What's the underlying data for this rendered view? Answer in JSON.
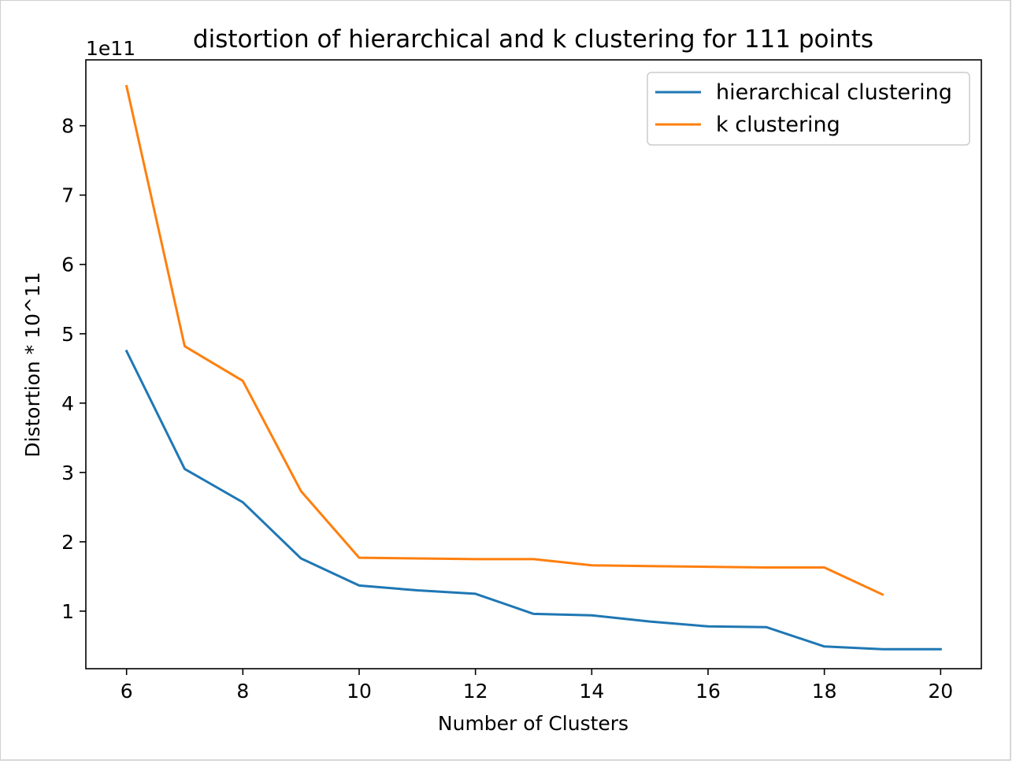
{
  "chart_data": {
    "type": "line",
    "title": "distortion of hierarchical and k clustering for 111 points",
    "xlabel": "Number of Clusters",
    "ylabel": "Distortion * 10^11",
    "y_offset_text": "1e11",
    "xlim": [
      5.3,
      20.7
    ],
    "ylim": [
      0.17,
      8.95
    ],
    "x_ticks": [
      6,
      8,
      10,
      12,
      14,
      16,
      18,
      20
    ],
    "y_ticks": [
      1,
      2,
      3,
      4,
      5,
      6,
      7,
      8
    ],
    "grid": false,
    "legend_position": "top-right",
    "series": [
      {
        "name": "hierarchical clustering",
        "color": "#1f77b4",
        "x": [
          6,
          7,
          8,
          9,
          10,
          11,
          12,
          13,
          14,
          15,
          16,
          17,
          18,
          19,
          20
        ],
        "y": [
          4.75,
          3.05,
          2.57,
          1.76,
          1.37,
          1.3,
          1.25,
          0.96,
          0.94,
          0.85,
          0.78,
          0.77,
          0.49,
          0.45,
          0.45
        ]
      },
      {
        "name": "k clustering",
        "color": "#ff7f0e",
        "x": [
          6,
          7,
          8,
          9,
          10,
          11,
          12,
          13,
          14,
          15,
          16,
          17,
          18,
          19
        ],
        "y": [
          8.57,
          4.82,
          4.32,
          2.73,
          1.77,
          1.76,
          1.75,
          1.75,
          1.66,
          1.65,
          1.64,
          1.63,
          1.63,
          1.24
        ]
      }
    ]
  }
}
